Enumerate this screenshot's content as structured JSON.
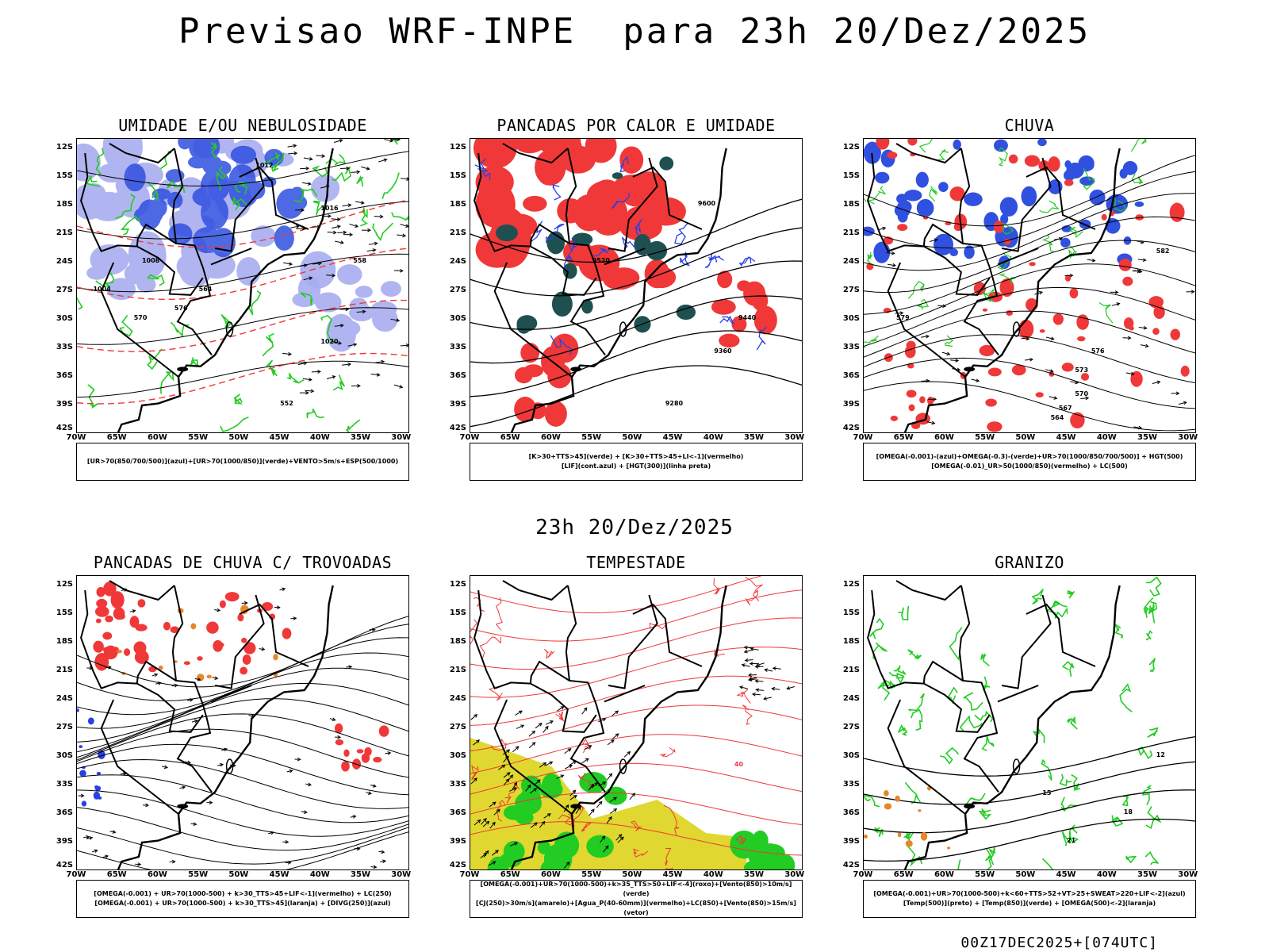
{
  "header": {
    "title": "Previsao WRF-INPE  para 23h 20/Dez/2025",
    "mid_title": "23h 20/Dez/2025",
    "footer": "00Z17DEC2025+[074UTC]"
  },
  "axes": {
    "lat_labels": [
      "12S",
      "15S",
      "18S",
      "21S",
      "24S",
      "27S",
      "30S",
      "33S",
      "36S",
      "39S",
      "42S"
    ],
    "lon_labels": [
      "70W",
      "65W",
      "60W",
      "55W",
      "50W",
      "45W",
      "40W",
      "35W",
      "30W"
    ]
  },
  "colors": {
    "cloud_blue": "#3050e0",
    "cloud_lavender": "#a8aef0",
    "green": "#22cc22",
    "red": "#f03838",
    "dark_teal": "#1e5050",
    "yellow": "#e0d830",
    "orange": "#e8862a"
  },
  "panels": [
    {
      "id": "umidade",
      "title": "UMIDADE E/OU NEBULOSIDADE",
      "legend": [
        "[UR>70(850/700/500)](azul)+[UR>70(1000/850)](verde)+VENTO>5m/s+ESP(500/1000)"
      ],
      "contour_labels": [
        "1012",
        "1016",
        "1008",
        "1004",
        "1020",
        "576",
        "570",
        "564",
        "558",
        "552"
      ]
    },
    {
      "id": "pancadas",
      "title": "PANCADAS POR CALOR E UMIDADE",
      "legend": [
        "[K>30+TTS>45](verde) + [K>30+TTS>45+LI<-1](vermelho)",
        "[LIF](cont.azul) + [HGT(300)](linha preta)"
      ],
      "contour_labels": [
        "9600",
        "9520",
        "9440",
        "9360",
        "9280"
      ]
    },
    {
      "id": "chuva",
      "title": "CHUVA",
      "legend": [
        "[OMEGA(-0.001)-(azul)+OMEGA(-0.3)-(verde)+UR>70(1000/850/700/500)] + HGT(500)",
        "[OMEGA(-0.01)_UR>50(1000/850)(vermelho) + LC(500)"
      ],
      "contour_labels": [
        "582",
        "579",
        "576",
        "573",
        "570",
        "567",
        "564"
      ]
    },
    {
      "id": "trovoadas",
      "title": "PANCADAS DE CHUVA C/ TROVOADAS",
      "legend": [
        "[OMEGA(-0.001) + UR>70(1000-500) + k>30_TTS>45+LIF<-1](vermelho) + LC(250)",
        "[OMEGA(-0.001) + UR>70(1000-500) + k>30_TTS>45](laranja) + [DIVG(250)](azul)"
      ],
      "contour_labels": []
    },
    {
      "id": "tempestade",
      "title": "TEMPESTADE",
      "legend": [
        "[OMEGA(-0.001)+UR>70(1000-500)+k>35_TTS>50+LIF<-4](roxo)+[Vento(850)>10m/s](verde)",
        "[CJ(250)>30m/s](amarelo)+[Agua_P(40-60mm)](vermelho)+LC(850)+[Vento(850)>15m/s](vetor)"
      ],
      "contour_labels": [
        "40"
      ]
    },
    {
      "id": "granizo",
      "title": "GRANIZO",
      "legend": [
        "[OMEGA(-0.001)+UR>70(1000-500)+k<60+TTS>52+VT>25+SWEAT>220+LIF<-2](azul)",
        "[Temp(500)](preto) + [Temp(850)](verde) + [OMEGA(500)<-2](laranja)"
      ],
      "contour_labels": [
        "12",
        "15",
        "18",
        "21"
      ]
    }
  ]
}
